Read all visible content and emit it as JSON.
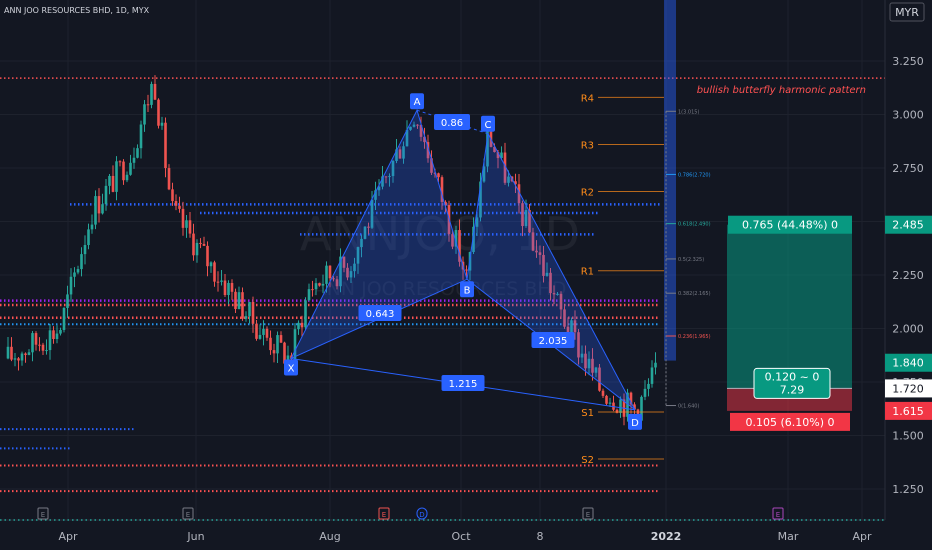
{
  "header": {
    "symbol_line": "ANN JOO RESOURCES BHD, 1D, MYX",
    "currency": "MYR"
  },
  "watermark": {
    "ticker": "ANNJOO, 1D",
    "name": "ANN JOO RESOURCES BHD"
  },
  "annotation": "bullish butterfly harmonic pattern",
  "colors": {
    "background": "#131722",
    "up": "#26a69a",
    "down": "#ef5350",
    "pattern": "#2962ff",
    "pivot_red": "#ff5252",
    "pivot_blue": "#2962ff",
    "fib_line": "#787b86",
    "tp_zone": "#089981",
    "sl_zone": "#f23645"
  },
  "chart_data": {
    "type": "candlestick",
    "title": "ANN JOO RESOURCES BHD, 1D, MYX",
    "x_axis": {
      "ticks": [
        "Apr",
        "Jun",
        "Aug",
        "Oct",
        "8",
        "2022",
        "Mar",
        "Apr"
      ]
    },
    "y_axis": {
      "unit": "MYR",
      "ticks": [
        1.25,
        1.5,
        1.75,
        2.0,
        2.25,
        2.5,
        2.75,
        3.0,
        3.25
      ],
      "range": [
        1.17,
        3.47
      ]
    },
    "price_range": {
      "start": 1.86,
      "first_top": 3.17,
      "A": 3.02,
      "B": 2.23,
      "C": 2.91,
      "D": 1.62,
      "last": 1.84
    },
    "harmonic_points": [
      {
        "label": "X",
        "price": 1.86
      },
      {
        "label": "A",
        "price": 3.02
      },
      {
        "label": "B",
        "price": 2.23
      },
      {
        "label": "C",
        "price": 2.91
      },
      {
        "label": "D",
        "price": 1.62
      }
    ],
    "ratios": [
      "0.643",
      "0.86",
      "2.035",
      "1.215"
    ],
    "pivots": [
      {
        "label": "R4",
        "price": 3.08
      },
      {
        "label": "R3",
        "price": 2.86
      },
      {
        "label": "R2",
        "price": 2.64
      },
      {
        "label": "R1",
        "price": 2.27
      },
      {
        "label": "S1",
        "price": 1.61
      },
      {
        "label": "S2",
        "price": 1.39
      }
    ],
    "fib_levels": [
      {
        "label": "1(3.015)",
        "price": 3.015,
        "color": "#787b86"
      },
      {
        "label": "0.786(2.720)",
        "price": 2.72,
        "color": "#2196f3"
      },
      {
        "label": "0.618(2.490)",
        "price": 2.49,
        "color": "#26a69a"
      },
      {
        "label": "0.5(2.325)",
        "price": 2.325,
        "color": "#787b86"
      },
      {
        "label": "0.382(2.165)",
        "price": 2.165,
        "color": "#787b86"
      },
      {
        "label": "0.236(1.965)",
        "price": 1.965,
        "color": "#ef5350"
      },
      {
        "label": "0(1.640)",
        "price": 1.64,
        "color": "#787b86"
      }
    ],
    "position": {
      "target_price": 2.485,
      "entry_price": 1.72,
      "stop_price": 1.615,
      "target_label": "0.765 (44.48%) 0",
      "stop_label": "0.105 (6.10%) 0",
      "ratio_line1": "0.120 ~ 0",
      "ratio_line2": "7.29"
    },
    "price_labels": [
      {
        "text": "2.485",
        "price": 2.485,
        "bg": "#089981",
        "fg": "#ffffff"
      },
      {
        "text": "1.840",
        "price": 1.84,
        "bg": "#089981",
        "fg": "#ffffff"
      },
      {
        "text": "1.720",
        "price": 1.72,
        "bg": "#ffffff",
        "fg": "#131722"
      },
      {
        "text": "1.615",
        "price": 1.615,
        "bg": "#f23645",
        "fg": "#ffffff"
      }
    ],
    "event_markers": [
      "E",
      "E",
      "E",
      "D",
      "E",
      "E"
    ]
  }
}
